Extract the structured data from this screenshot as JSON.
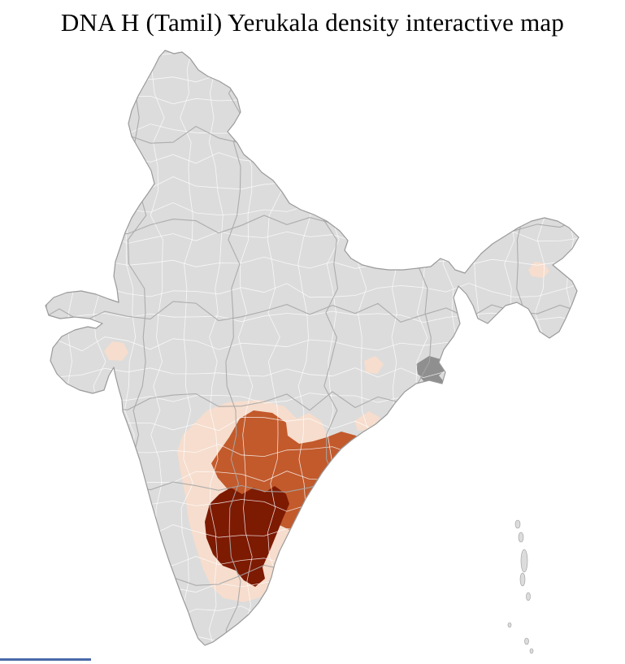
{
  "title": "DNA H (Tamil) Yerukala density interactive map",
  "map": {
    "label": "India district-level choropleth",
    "colors": {
      "background": "#ffffff",
      "default_district_fill": "#dcdcdc",
      "district_border": "#ffffff",
      "state_border": "#a6a6a6",
      "country_outline": "#9a9a9a",
      "low_density_fill": "#f6ddcd",
      "medium_density_fill": "#c25a2c",
      "high_density_fill": "#7d1a02",
      "no_data_fill": "#8f8f8f",
      "bottom_bar": "#4a69a8"
    },
    "density_levels": [
      {
        "name": "high",
        "color_key": "high_density_fill"
      },
      {
        "name": "medium",
        "color_key": "medium_density_fill"
      },
      {
        "name": "low",
        "color_key": "low_density_fill"
      },
      {
        "name": "none",
        "color_key": "default_district_fill"
      },
      {
        "name": "no-data",
        "color_key": "no_data_fill"
      }
    ]
  }
}
